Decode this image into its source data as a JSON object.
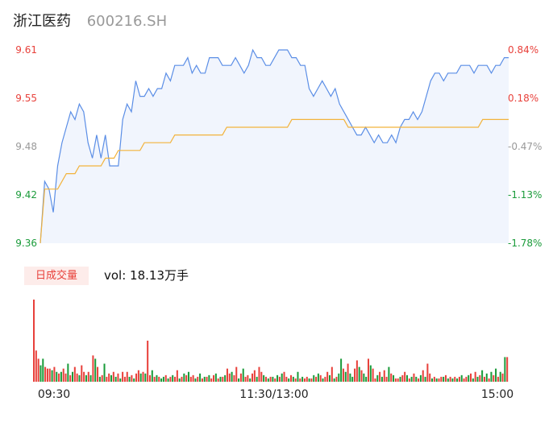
{
  "header": {
    "name": "浙江医药",
    "code": "600216.SH"
  },
  "volume": {
    "badge": "日成交量",
    "label": "vol: 18.13万手"
  },
  "colors": {
    "price": "#5b8ee6",
    "avg": "#f2b33c",
    "up": "#e8413b",
    "down": "#1a9b3a",
    "fill": "#f1f5fd"
  },
  "chart_data": [
    {
      "type": "line",
      "title": "",
      "ylim": [
        9.36,
        9.61
      ],
      "y_ticks": [
        "9.61",
        "9.55",
        "9.48",
        "9.42",
        "9.36"
      ],
      "y_ticks_right": [
        "0.84%",
        "0.18%",
        "-0.47%",
        "-1.13%",
        "-1.78%"
      ],
      "x_ticks": [
        "09:30",
        "11:30/13:00",
        "15:00"
      ],
      "series": [
        {
          "key": "price",
          "values": [
            9.36,
            9.44,
            9.43,
            9.4,
            9.46,
            9.49,
            9.51,
            9.53,
            9.52,
            9.54,
            9.53,
            9.49,
            9.47,
            9.5,
            9.47,
            9.5,
            9.46,
            9.46,
            9.46,
            9.52,
            9.54,
            9.53,
            9.57,
            9.55,
            9.55,
            9.56,
            9.55,
            9.56,
            9.56,
            9.58,
            9.57,
            9.59,
            9.59,
            9.59,
            9.6,
            9.58,
            9.59,
            9.58,
            9.58,
            9.6,
            9.6,
            9.6,
            9.59,
            9.59,
            9.59,
            9.6,
            9.59,
            9.58,
            9.59,
            9.61,
            9.6,
            9.6,
            9.59,
            9.59,
            9.6,
            9.61,
            9.61,
            9.61,
            9.6,
            9.6,
            9.59,
            9.59,
            9.56,
            9.55,
            9.56,
            9.57,
            9.56,
            9.55,
            9.56,
            9.54,
            9.53,
            9.52,
            9.51,
            9.5,
            9.5,
            9.51,
            9.5,
            9.49,
            9.5,
            9.49,
            9.49,
            9.5,
            9.49,
            9.51,
            9.52,
            9.52,
            9.53,
            9.52,
            9.53,
            9.55,
            9.57,
            9.58,
            9.58,
            9.57,
            9.58,
            9.58,
            9.58,
            9.59,
            9.59,
            9.59,
            9.58,
            9.59,
            9.59,
            9.59,
            9.58,
            9.59,
            9.59,
            9.6,
            9.6
          ],
          "stroke": "#5b8ee6"
        },
        {
          "key": "avg",
          "values": [
            9.36,
            9.43,
            9.43,
            9.43,
            9.43,
            9.44,
            9.45,
            9.45,
            9.45,
            9.46,
            9.46,
            9.46,
            9.46,
            9.46,
            9.46,
            9.47,
            9.47,
            9.47,
            9.48,
            9.48,
            9.48,
            9.48,
            9.48,
            9.48,
            9.49,
            9.49,
            9.49,
            9.49,
            9.49,
            9.49,
            9.49,
            9.5,
            9.5,
            9.5,
            9.5,
            9.5,
            9.5,
            9.5,
            9.5,
            9.5,
            9.5,
            9.5,
            9.5,
            9.51,
            9.51,
            9.51,
            9.51,
            9.51,
            9.51,
            9.51,
            9.51,
            9.51,
            9.51,
            9.51,
            9.51,
            9.51,
            9.51,
            9.51,
            9.52,
            9.52,
            9.52,
            9.52,
            9.52,
            9.52,
            9.52,
            9.52,
            9.52,
            9.52,
            9.52,
            9.52,
            9.52,
            9.51,
            9.51,
            9.51,
            9.51,
            9.51,
            9.51,
            9.51,
            9.51,
            9.51,
            9.51,
            9.51,
            9.51,
            9.51,
            9.51,
            9.51,
            9.51,
            9.51,
            9.51,
            9.51,
            9.51,
            9.51,
            9.51,
            9.51,
            9.51,
            9.51,
            9.51,
            9.51,
            9.51,
            9.51,
            9.51,
            9.51,
            9.52,
            9.52,
            9.52,
            9.52,
            9.52,
            9.52,
            9.52
          ],
          "stroke": "#f2b33c"
        }
      ]
    },
    {
      "type": "bar",
      "title": "日成交量",
      "values": [
        1.0,
        0.38,
        0.28,
        0.2,
        0.28,
        0.18,
        0.16,
        0.16,
        0.14,
        0.18,
        0.12,
        0.1,
        0.12,
        0.16,
        0.1,
        0.22,
        0.08,
        0.12,
        0.18,
        0.1,
        0.08,
        0.2,
        0.12,
        0.08,
        0.12,
        0.08,
        0.32,
        0.28,
        0.18,
        0.06,
        0.08,
        0.22,
        0.06,
        0.1,
        0.08,
        0.12,
        0.06,
        0.1,
        0.04,
        0.12,
        0.06,
        0.12,
        0.06,
        0.08,
        0.04,
        0.1,
        0.14,
        0.1,
        0.12,
        0.1,
        0.5,
        0.08,
        0.14,
        0.06,
        0.08,
        0.06,
        0.04,
        0.06,
        0.08,
        0.04,
        0.06,
        0.08,
        0.06,
        0.14,
        0.04,
        0.06,
        0.1,
        0.08,
        0.12,
        0.06,
        0.08,
        0.04,
        0.06,
        0.1,
        0.04,
        0.06,
        0.06,
        0.08,
        0.04,
        0.08,
        0.1,
        0.04,
        0.06,
        0.06,
        0.08,
        0.16,
        0.1,
        0.12,
        0.08,
        0.18,
        0.04,
        0.1,
        0.16,
        0.06,
        0.08,
        0.04,
        0.1,
        0.14,
        0.06,
        0.18,
        0.12,
        0.08,
        0.06,
        0.04,
        0.06,
        0.06,
        0.04,
        0.08,
        0.06,
        0.1,
        0.12,
        0.06,
        0.04,
        0.08,
        0.06,
        0.04,
        0.12,
        0.04,
        0.06,
        0.04,
        0.06,
        0.04,
        0.04,
        0.08,
        0.06,
        0.1,
        0.08,
        0.04,
        0.06,
        0.12,
        0.08,
        0.18,
        0.04,
        0.06,
        0.1,
        0.28,
        0.16,
        0.12,
        0.22,
        0.1,
        0.06,
        0.16,
        0.26,
        0.18,
        0.14,
        0.1,
        0.06,
        0.28,
        0.2,
        0.16,
        0.04,
        0.08,
        0.12,
        0.06,
        0.14,
        0.06,
        0.18,
        0.1,
        0.08,
        0.04,
        0.04,
        0.06,
        0.08,
        0.12,
        0.08,
        0.04,
        0.06,
        0.1,
        0.06,
        0.04,
        0.08,
        0.14,
        0.06,
        0.22,
        0.1,
        0.04,
        0.06,
        0.04,
        0.04,
        0.06,
        0.06,
        0.08,
        0.04,
        0.06,
        0.04,
        0.06,
        0.04,
        0.06,
        0.08,
        0.04,
        0.06,
        0.08,
        0.1,
        0.04,
        0.12,
        0.06,
        0.08,
        0.14,
        0.06,
        0.1,
        0.04,
        0.12,
        0.08,
        0.16,
        0.06,
        0.12,
        0.1,
        0.3,
        0.3
      ],
      "up": [
        1,
        1,
        1,
        0,
        0,
        1,
        1,
        1,
        0,
        1,
        0,
        1,
        0,
        1,
        1,
        0,
        1,
        0,
        1,
        1,
        0,
        1,
        1,
        0,
        1,
        0,
        1,
        0,
        1,
        0,
        1,
        0,
        1,
        1,
        0,
        1,
        0,
        1,
        0,
        1,
        1,
        1,
        0,
        1,
        0,
        1,
        1,
        0,
        1,
        0,
        1,
        1,
        0,
        1,
        0,
        1,
        0,
        0,
        1,
        0,
        1,
        0,
        1,
        1,
        0,
        1,
        0,
        1,
        0,
        1,
        1,
        0,
        1,
        0,
        1,
        0,
        1,
        0,
        1,
        1,
        0,
        1,
        0,
        1,
        0,
        1,
        1,
        0,
        1,
        1,
        0,
        1,
        0,
        1,
        1,
        0,
        1,
        1,
        0,
        1,
        1,
        0,
        1,
        0,
        1,
        0,
        1,
        0,
        1,
        0,
        1,
        1,
        0,
        1,
        0,
        1,
        0,
        1,
        0,
        1,
        1,
        0,
        1,
        0,
        1,
        0,
        1,
        0,
        1,
        1,
        0,
        1,
        0,
        1,
        0,
        0,
        1,
        0,
        1,
        0,
        0,
        1,
        1,
        0,
        1,
        0,
        0,
        1,
        0,
        1,
        1,
        0,
        1,
        0,
        1,
        1,
        0,
        1,
        0,
        1,
        1,
        0,
        1,
        1,
        0,
        1,
        0,
        1,
        0,
        1,
        0,
        1,
        0,
        1,
        1,
        0,
        1,
        0,
        1,
        1,
        0,
        1,
        0,
        1,
        0,
        1,
        0,
        1,
        0,
        1,
        1,
        0,
        1,
        0,
        1,
        0,
        1,
        0,
        1,
        0,
        1,
        0,
        1,
        0,
        1,
        0,
        1,
        0,
        1,
        1,
        1,
        1
      ]
    }
  ]
}
